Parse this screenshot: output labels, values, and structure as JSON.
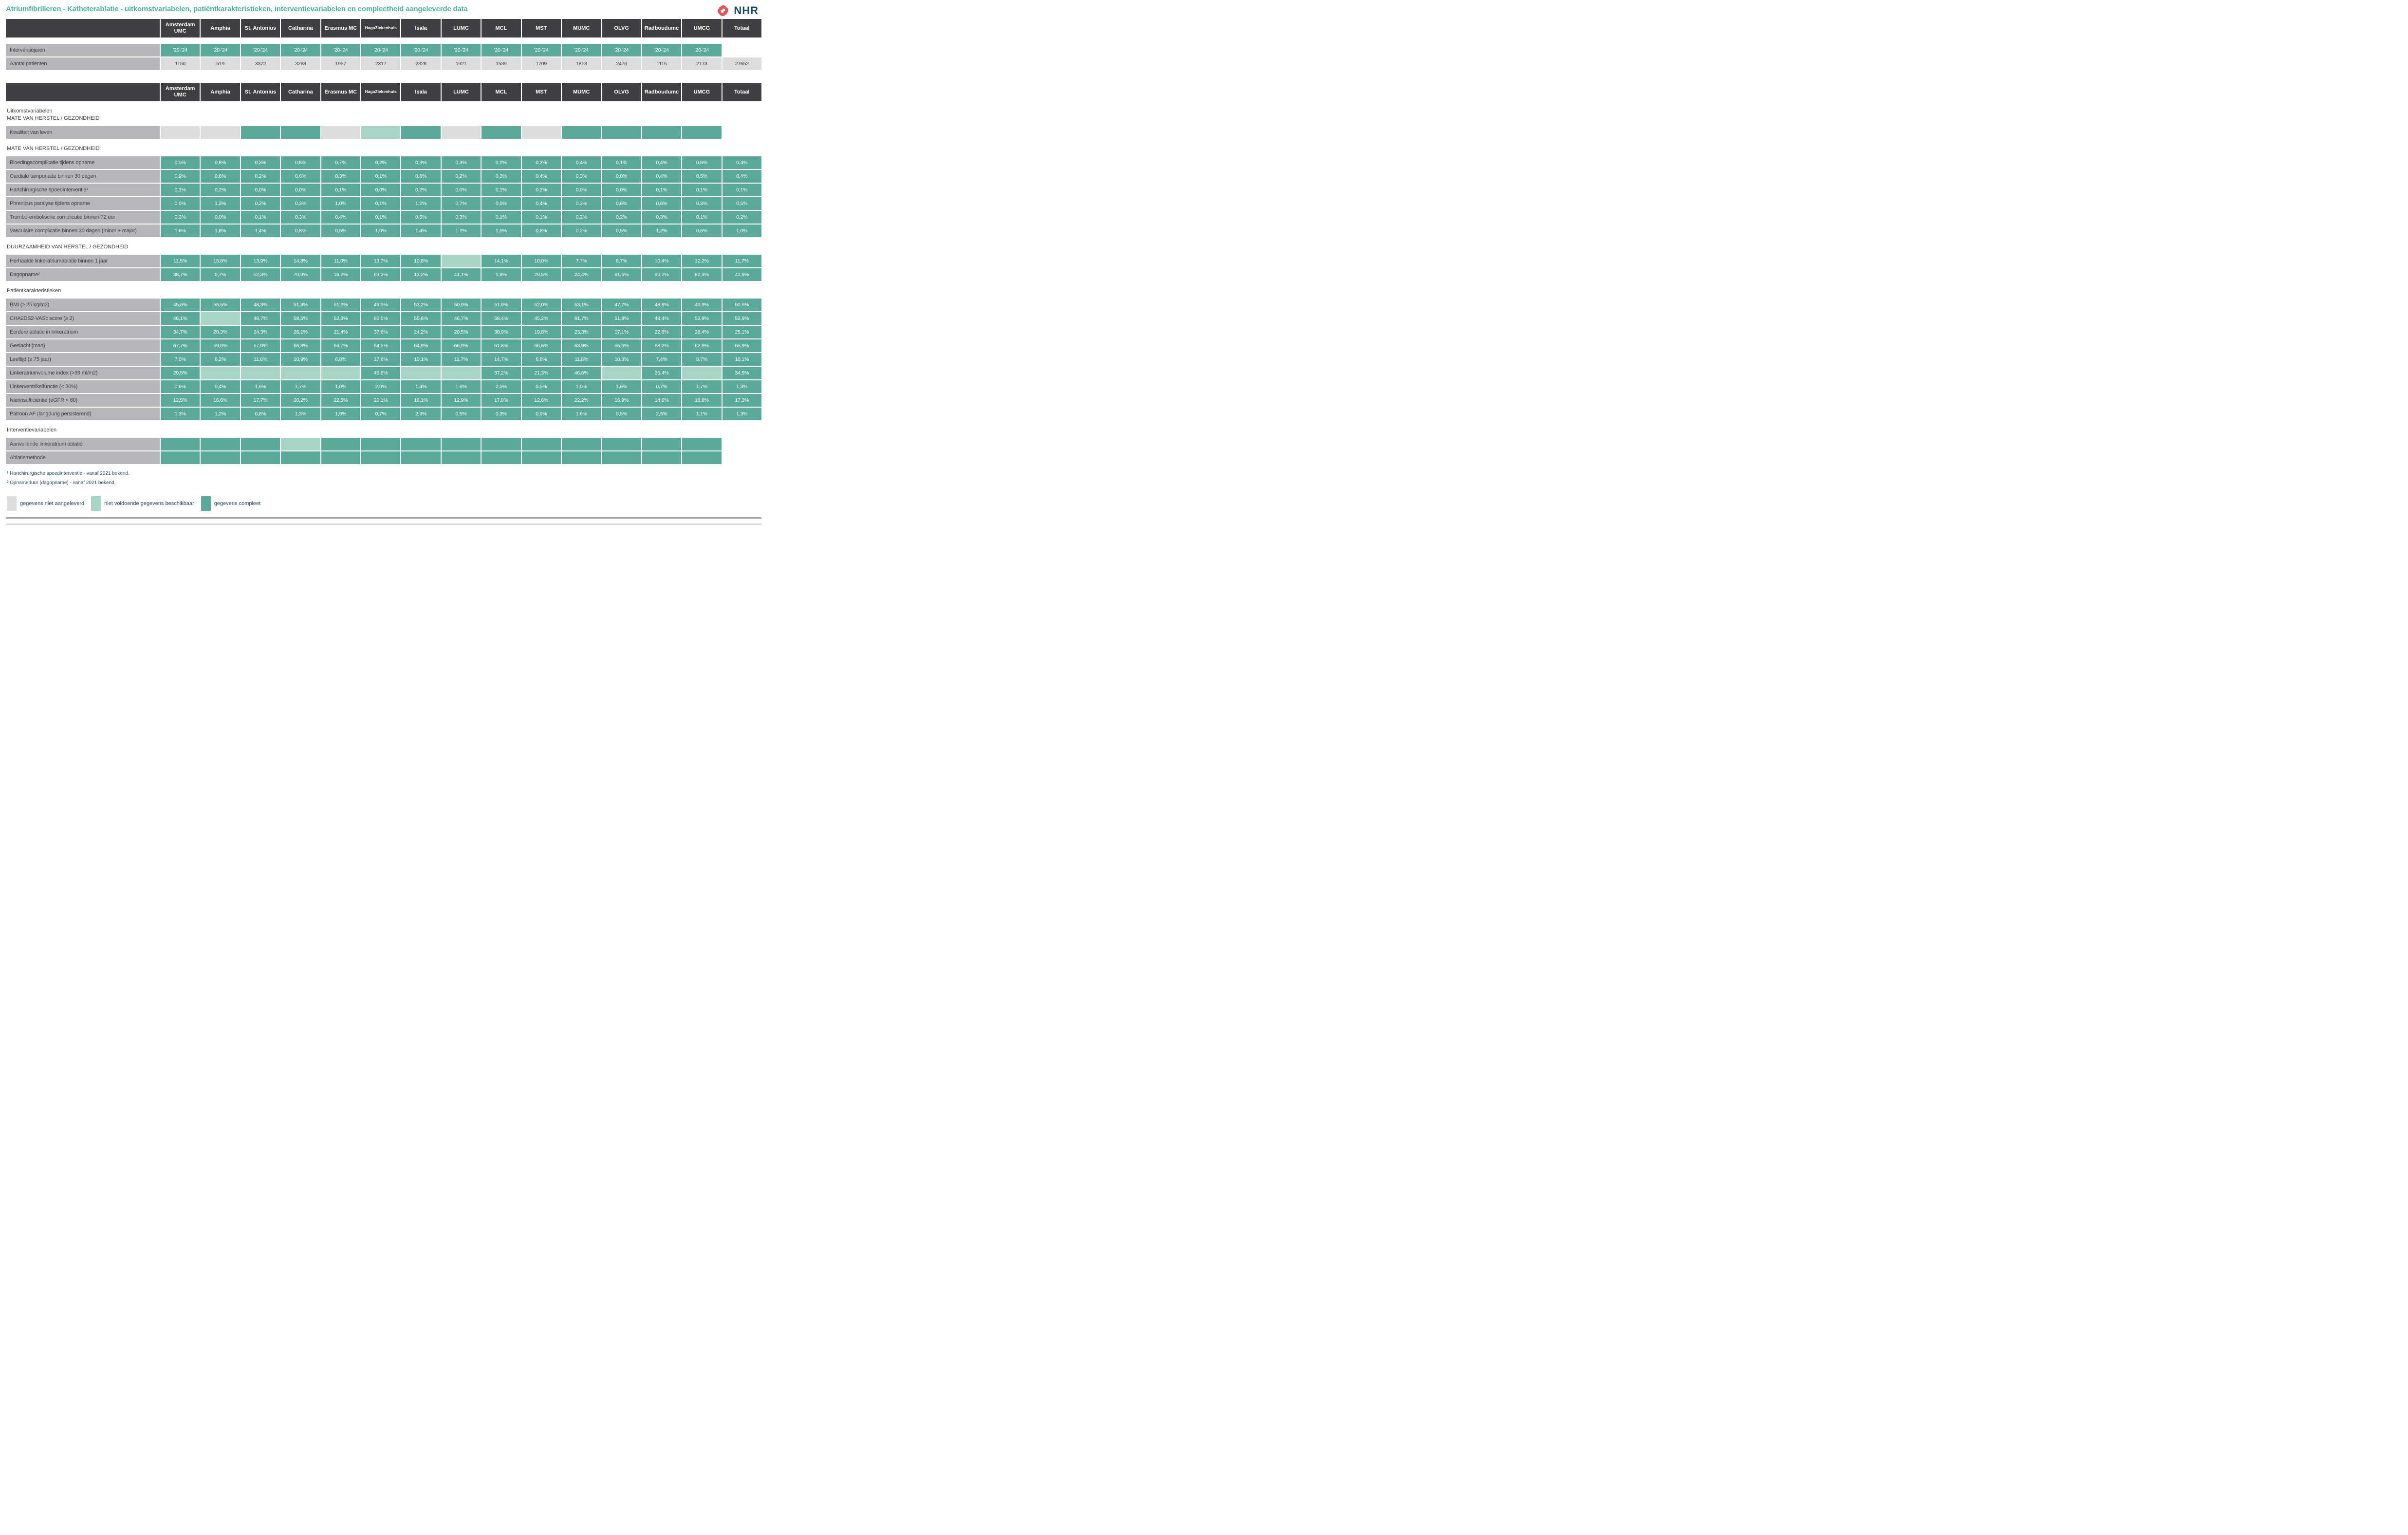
{
  "title": "Atriumfibrilleren - Katheterablatie - uitkomstvariabelen, patiëntkarakteristieken, interventievariabelen en compleetheid aangeleverde data",
  "logo": {
    "text": "NHR",
    "icon_color": "#E2595B",
    "text_color": "#1A4A66"
  },
  "colors": {
    "complete": "#5AA99A",
    "insufficient": "#A8D5C5",
    "missing": "#DCDCDC",
    "label_bg": "#B7B7BA",
    "header_bg": "#3F3F41",
    "title": "#4FB1A0"
  },
  "columns": [
    "Amsterdam UMC",
    "Amphia",
    "St. Antonius",
    "Catharina",
    "Erasmus MC",
    "HagaZiekenhuis",
    "Isala",
    "LUMC",
    "MCL",
    "MST",
    "MUMC",
    "OLVG",
    "Radboudumc",
    "UMCG",
    "Totaal"
  ],
  "intro_table": {
    "rows": [
      {
        "label": "Interventiejaren",
        "cells": [
          {
            "v": "'20-'24",
            "s": "c"
          },
          {
            "v": "'20-'24",
            "s": "c"
          },
          {
            "v": "'20-'24",
            "s": "c"
          },
          {
            "v": "'20-'24",
            "s": "c"
          },
          {
            "v": "'20-'24",
            "s": "c"
          },
          {
            "v": "'20-'24",
            "s": "c"
          },
          {
            "v": "'20-'24",
            "s": "c"
          },
          {
            "v": "'20-'24",
            "s": "c"
          },
          {
            "v": "'20-'24",
            "s": "c"
          },
          {
            "v": "'20-'24",
            "s": "c"
          },
          {
            "v": "'20-'24",
            "s": "c"
          },
          {
            "v": "'20-'24",
            "s": "c"
          },
          {
            "v": "'20-'24",
            "s": "c"
          },
          {
            "v": "'20-'24",
            "s": "c"
          },
          {
            "s": "n"
          }
        ]
      },
      {
        "label": "Aantal patiënten",
        "cells": [
          {
            "v": "1150",
            "s": "p"
          },
          {
            "v": "519",
            "s": "p"
          },
          {
            "v": "3372",
            "s": "p"
          },
          {
            "v": "3263",
            "s": "p"
          },
          {
            "v": "1957",
            "s": "p"
          },
          {
            "v": "2317",
            "s": "p"
          },
          {
            "v": "2328",
            "s": "p"
          },
          {
            "v": "1921",
            "s": "p"
          },
          {
            "v": "1539",
            "s": "p"
          },
          {
            "v": "1709",
            "s": "p"
          },
          {
            "v": "1813",
            "s": "p"
          },
          {
            "v": "2476",
            "s": "p"
          },
          {
            "v": "1115",
            "s": "p"
          },
          {
            "v": "2173",
            "s": "p"
          },
          {
            "v": "27652",
            "s": "p"
          }
        ]
      }
    ]
  },
  "main_table": {
    "groups": [
      {
        "section": [
          "Uitkomstvariabelen",
          "MATE VAN HERSTEL / GEZONDHEID"
        ],
        "rows": [
          {
            "label": "Kwaliteit van leven",
            "cells": [
              {
                "s": "m"
              },
              {
                "s": "m"
              },
              {
                "s": "c"
              },
              {
                "s": "c"
              },
              {
                "s": "m"
              },
              {
                "s": "i"
              },
              {
                "s": "c"
              },
              {
                "s": "m"
              },
              {
                "s": "c"
              },
              {
                "s": "m"
              },
              {
                "s": "c"
              },
              {
                "s": "c"
              },
              {
                "s": "c"
              },
              {
                "s": "c"
              },
              {
                "s": "n"
              }
            ]
          }
        ]
      },
      {
        "section": [
          "MATE VAN HERSTEL / GEZONDHEID"
        ],
        "rows": [
          {
            "label": "Bloedingscomplicatie tijdens opname",
            "cells": [
              "0,5%",
              "0,8%",
              "0,3%",
              "0,6%",
              "0,7%",
              "0,2%",
              "0,3%",
              "0,3%",
              "0,2%",
              "0,3%",
              "0,4%",
              "0,1%",
              "0,4%",
              "0,6%",
              "0,4%"
            ]
          },
          {
            "label": "Cardiale tamponade binnen 30 dagen",
            "cells": [
              "0,9%",
              "0,6%",
              "0,2%",
              "0,6%",
              "0,3%",
              "0,1%",
              "0,8%",
              "0,2%",
              "0,3%",
              "0,4%",
              "0,3%",
              "0,0%",
              "0,4%",
              "0,5%",
              "0,4%"
            ]
          },
          {
            "label": "Hartchirurgische spoedinterventie¹",
            "cells": [
              "0,1%",
              "0,2%",
              "0,0%",
              "0,0%",
              "0,1%",
              "0,0%",
              "0,2%",
              "0,0%",
              "0,1%",
              "0,2%",
              "0,0%",
              "0,0%",
              "0,1%",
              "0,1%",
              "0,1%"
            ]
          },
          {
            "label": "Phrenicus paralyse tijdens opname",
            "cells": [
              "0,0%",
              "1,3%",
              "0,2%",
              "0,3%",
              "1,0%",
              "0,1%",
              "1,2%",
              "0,7%",
              "0,5%",
              "0,4%",
              "0,3%",
              "0,6%",
              "0,6%",
              "0,3%",
              "0,5%"
            ]
          },
          {
            "label": "Trombo-embolische complicatie binnen 72 uur",
            "cells": [
              "0,3%",
              "0,0%",
              "0,1%",
              "0,3%",
              "0,4%",
              "0,1%",
              "0,5%",
              "0,3%",
              "0,1%",
              "0,1%",
              "0,2%",
              "0,2%",
              "0,3%",
              "0,1%",
              "0,2%"
            ]
          },
          {
            "label": "Vasculaire complicatie binnen 30 dagen (minor + major)",
            "cells": [
              "1,6%",
              "1,8%",
              "1,4%",
              "0,8%",
              "0,5%",
              "1,0%",
              "1,4%",
              "1,2%",
              "1,5%",
              "0,8%",
              "0,2%",
              "0,5%",
              "1,2%",
              "0,6%",
              "1,0%"
            ]
          }
        ]
      },
      {
        "section": [
          "DUURZAAMHEID VAN HERSTEL / GEZONDHEID"
        ],
        "rows": [
          {
            "label": "Herhaalde linkeratriumablatie binnen 1 jaar",
            "cells": [
              "11,5%",
              "15,8%",
              "13,9%",
              "14,8%",
              "11,0%",
              "13,7%",
              "10,8%",
              {
                "s": "i"
              },
              "14,1%",
              "10,0%",
              "7,7%",
              "6,7%",
              "10,4%",
              "12,2%",
              "11,7%"
            ]
          },
          {
            "label": "Dagopname²",
            "cells": [
              "38,7%",
              "0,7%",
              "52,3%",
              "70,9%",
              "16,2%",
              "63,3%",
              "13,2%",
              "41,1%",
              "1,9%",
              "29,5%",
              "24,4%",
              "61,6%",
              "90,2%",
              "82,3%",
              "41,9%"
            ]
          }
        ]
      },
      {
        "section": [
          "Patiëntkarakteristieken"
        ],
        "rows": [
          {
            "label": "BMI (≥ 25 kg/m2)",
            "cells": [
              "45,6%",
              "55,5%",
              "48,3%",
              "51,3%",
              "51,2%",
              "49,5%",
              "53,2%",
              "50,9%",
              "51,9%",
              "52,0%",
              "53,1%",
              "47,7%",
              "48,8%",
              "49,9%",
              "50,6%"
            ]
          },
          {
            "label": "CHA2DS2-VASc score (≥ 2)",
            "cells": [
              "46,1%",
              {
                "s": "i"
              },
              "48,7%",
              "58,5%",
              "52,3%",
              "60,5%",
              "55,6%",
              "46,7%",
              "58,4%",
              "45,2%",
              "61,7%",
              "51,8%",
              "48,4%",
              "53,9%",
              "52,9%"
            ]
          },
          {
            "label": "Eerdere ablatie in linkeratrium",
            "cells": [
              "34,7%",
              "20,3%",
              "24,3%",
              "26,1%",
              "21,4%",
              "37,6%",
              "24,2%",
              "20,5%",
              "30,9%",
              "19,8%",
              "23,3%",
              "17,1%",
              "22,8%",
              "28,4%",
              "25,1%"
            ]
          },
          {
            "label": "Geslacht (man)",
            "cells": [
              "67,7%",
              "69,0%",
              "67,0%",
              "66,8%",
              "66,7%",
              "64,5%",
              "64,9%",
              "66,9%",
              "61,8%",
              "66,6%",
              "63,9%",
              "65,6%",
              "68,2%",
              "62,9%",
              "65,9%"
            ]
          },
          {
            "label": "Leeftijd (≥ 75 jaar)",
            "cells": [
              "7,0%",
              "6,2%",
              "11,8%",
              "10,9%",
              "6,8%",
              "17,6%",
              "10,1%",
              "11,7%",
              "14,7%",
              "6,8%",
              "11,8%",
              "10,3%",
              "7,4%",
              "8,7%",
              "10,1%"
            ]
          },
          {
            "label": "Linkeratriumvolume index (>39 ml/m2)",
            "cells": [
              "29,5%",
              {
                "s": "i"
              },
              {
                "s": "i"
              },
              {
                "s": "i"
              },
              {
                "s": "i"
              },
              "45,8%",
              {
                "s": "i"
              },
              {
                "s": "i"
              },
              "37,2%",
              "21,3%",
              "46,6%",
              {
                "s": "i"
              },
              "26,4%",
              {
                "s": "i"
              },
              "34,5%"
            ]
          },
          {
            "label": "Linkerventrikelfunctie (< 30%)",
            "cells": [
              "0,6%",
              "0,4%",
              "1,6%",
              "1,7%",
              "1,0%",
              "2,0%",
              "1,4%",
              "1,6%",
              "2,5%",
              "0,5%",
              "1,0%",
              "1,6%",
              "0,7%",
              "1,7%",
              "1,3%"
            ]
          },
          {
            "label": "Nierinsufficiëntie (eGFR < 60)",
            "cells": [
              "12,5%",
              "16,6%",
              "17,7%",
              "20,2%",
              "22,5%",
              "20,1%",
              "16,1%",
              "12,9%",
              "17,8%",
              "12,6%",
              "22,2%",
              "16,9%",
              "14,6%",
              "18,8%",
              "17,3%"
            ]
          },
          {
            "label": "Patroon AF (langdurig persisterend)",
            "cells": [
              "1,3%",
              "1,2%",
              "0,8%",
              "1,3%",
              "1,9%",
              "0,7%",
              "2,9%",
              "0,5%",
              "0,3%",
              "0,9%",
              "1,6%",
              "0,5%",
              "2,5%",
              "1,1%",
              "1,3%"
            ]
          }
        ]
      },
      {
        "section": [
          "Interventievariabelen"
        ],
        "rows": [
          {
            "label": "Aanvullende linkeratrium ablatie",
            "cells": [
              {
                "s": "c"
              },
              {
                "s": "c"
              },
              {
                "s": "c"
              },
              {
                "s": "i"
              },
              {
                "s": "c"
              },
              {
                "s": "c"
              },
              {
                "s": "c"
              },
              {
                "s": "c"
              },
              {
                "s": "c"
              },
              {
                "s": "c"
              },
              {
                "s": "c"
              },
              {
                "s": "c"
              },
              {
                "s": "c"
              },
              {
                "s": "c"
              },
              {
                "s": "n"
              }
            ]
          },
          {
            "label": "Ablatiemethode",
            "cells": [
              {
                "s": "c"
              },
              {
                "s": "c"
              },
              {
                "s": "c"
              },
              {
                "s": "c"
              },
              {
                "s": "c"
              },
              {
                "s": "c"
              },
              {
                "s": "c"
              },
              {
                "s": "c"
              },
              {
                "s": "c"
              },
              {
                "s": "c"
              },
              {
                "s": "c"
              },
              {
                "s": "c"
              },
              {
                "s": "c"
              },
              {
                "s": "c"
              },
              {
                "s": "n"
              }
            ]
          }
        ]
      }
    ]
  },
  "footnotes": [
    "¹ Hartchirurgische spoedinterventie - vanaf 2021 bekend.",
    "² Opnameduur (dagopname) - vanaf 2021 bekend."
  ],
  "legend": [
    {
      "label": "gegevens niet aangeleverd",
      "status": "missing",
      "code": "m"
    },
    {
      "label": "niet voldoende gegevens beschikbaar",
      "status": "insufficient",
      "code": "i"
    },
    {
      "label": "gegevens compleet",
      "status": "complete",
      "code": "c"
    }
  ]
}
